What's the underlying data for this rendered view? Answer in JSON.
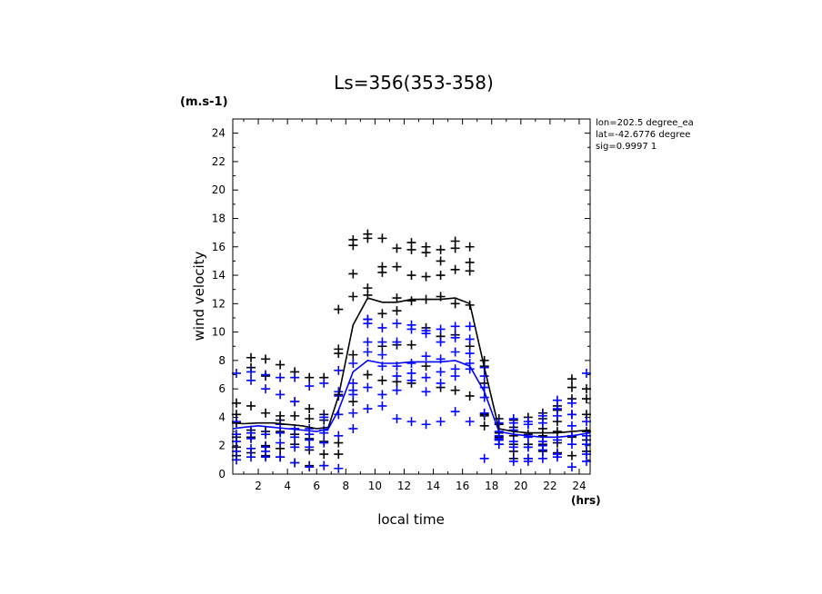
{
  "chart_data": {
    "type": "scatter",
    "title": "Ls=356(353-358)",
    "xlabel": "local time",
    "xunit": "(hrs)",
    "ylabel": "wind velocity",
    "yunit": "(m.s-1)",
    "xlim": [
      0.25,
      24.75
    ],
    "ylim": [
      0,
      25
    ],
    "xticks": [
      2,
      4,
      6,
      8,
      10,
      12,
      14,
      16,
      18,
      20,
      22,
      24
    ],
    "yticks": [
      0,
      2,
      4,
      6,
      8,
      10,
      12,
      14,
      16,
      18,
      20,
      22,
      24
    ],
    "annotations": [
      "lon=202.5 degree_ea",
      "lat=-42.6776 degree",
      "sig=0.9997 1"
    ],
    "colors": {
      "black_series": "#000000",
      "blue_series": "#0000ff"
    },
    "series": [
      {
        "color": "black",
        "marker": "plus",
        "x": [
          0.5,
          0.5,
          0.5,
          0.5,
          0.5,
          0.5,
          1.5,
          1.5,
          1.5,
          1.5,
          1.5,
          1.5,
          2.5,
          2.5,
          2.5,
          2.5,
          2.5,
          2.5,
          3.5,
          3.5,
          3.5,
          3.5,
          3.5,
          3.5,
          4.5,
          4.5,
          4.5,
          4.5,
          4.5,
          4.5,
          5.5,
          5.5,
          5.5,
          5.5,
          5.5,
          5.5,
          6.5,
          6.5,
          6.5,
          6.5,
          6.5,
          6.5,
          7.5,
          7.5,
          7.5,
          7.5,
          7.5,
          7.5,
          8.5,
          8.5,
          8.5,
          8.5,
          8.5,
          8.5,
          9.5,
          9.5,
          9.5,
          9.5,
          9.5,
          9.5,
          10.5,
          10.5,
          10.5,
          10.5,
          10.5,
          10.5,
          11.5,
          11.5,
          11.5,
          11.5,
          11.5,
          11.5,
          12.5,
          12.5,
          12.5,
          12.5,
          12.5,
          12.5,
          13.5,
          13.5,
          13.5,
          13.5,
          13.5,
          13.5,
          14.5,
          14.5,
          14.5,
          14.5,
          14.5,
          14.5,
          15.5,
          15.5,
          15.5,
          15.5,
          15.5,
          15.5,
          16.5,
          16.5,
          16.5,
          16.5,
          16.5,
          16.5,
          17.5,
          17.5,
          17.5,
          17.5,
          17.5,
          17.5,
          18.5,
          18.5,
          18.5,
          18.5,
          18.5,
          18.5,
          19.5,
          19.5,
          19.5,
          19.5,
          19.5,
          19.5,
          20.5,
          20.5,
          20.5,
          20.5,
          20.5,
          20.5,
          21.5,
          21.5,
          21.5,
          21.5,
          21.5,
          21.5,
          22.5,
          22.5,
          22.5,
          22.5,
          22.5,
          22.5,
          23.5,
          23.5,
          23.5,
          23.5,
          23.5,
          23.5,
          24.5,
          24.5,
          24.5,
          24.5,
          24.5,
          24.5
        ],
        "y": [
          5.0,
          4.2,
          3.6,
          2.6,
          1.9,
          1.3,
          8.2,
          7.5,
          4.8,
          3.1,
          2.6,
          1.5,
          8.1,
          6.9,
          4.3,
          3.0,
          2.0,
          1.3,
          7.7,
          4.1,
          3.8,
          3.0,
          1.8,
          1.2,
          7.2,
          5.1,
          4.1,
          2.8,
          2.1,
          0.8,
          6.8,
          4.6,
          3.9,
          2.5,
          1.7,
          0.6,
          6.8,
          4.2,
          3.8,
          2.3,
          1.4,
          0.6,
          11.6,
          8.5,
          8.8,
          5.6,
          2.2,
          1.4,
          16.5,
          16.1,
          14.1,
          12.5,
          8.4,
          5.1,
          16.9,
          16.6,
          13.1,
          12.6,
          10.9,
          7.0,
          16.6,
          14.6,
          14.2,
          11.3,
          9.0,
          6.6,
          15.9,
          14.6,
          12.4,
          11.5,
          9.1,
          6.5,
          16.3,
          15.8,
          14.0,
          12.2,
          9.1,
          6.4,
          16.0,
          15.6,
          13.9,
          12.3,
          10.3,
          7.6,
          15.8,
          15.0,
          14.0,
          12.5,
          9.7,
          6.1,
          16.4,
          15.9,
          14.4,
          12.0,
          9.8,
          5.9,
          16.0,
          14.9,
          14.3,
          11.9,
          9.0,
          5.5,
          8.0,
          7.6,
          6.4,
          4.1,
          4.2,
          3.4,
          3.9,
          3.5,
          2.9,
          2.1,
          2.4,
          2.6,
          3.8,
          3.3,
          2.7,
          2.1,
          1.6,
          1.1,
          4.0,
          3.5,
          2.8,
          2.1,
          1.9,
          1.1,
          4.3,
          3.9,
          3.2,
          2.7,
          2.1,
          1.6,
          4.8,
          4.5,
          3.7,
          3.0,
          2.2,
          1.5,
          6.7,
          6.1,
          5.3,
          4.2,
          2.6,
          1.3,
          6.0,
          5.3,
          4.2,
          3.0,
          2.4,
          1.6
        ]
      },
      {
        "color": "blue",
        "marker": "plus",
        "x": [
          0.5,
          0.5,
          0.5,
          0.5,
          0.5,
          0.5,
          1.5,
          1.5,
          1.5,
          1.5,
          1.5,
          1.5,
          2.5,
          2.5,
          2.5,
          2.5,
          2.5,
          2.5,
          3.5,
          3.5,
          3.5,
          3.5,
          3.5,
          3.5,
          4.5,
          4.5,
          4.5,
          4.5,
          4.5,
          4.5,
          5.5,
          5.5,
          5.5,
          5.5,
          5.5,
          5.5,
          6.5,
          6.5,
          6.5,
          6.5,
          6.5,
          6.5,
          7.5,
          7.5,
          7.5,
          7.5,
          7.5,
          7.5,
          8.5,
          8.5,
          8.5,
          8.5,
          8.5,
          8.5,
          9.5,
          9.5,
          9.5,
          9.5,
          9.5,
          9.5,
          10.5,
          10.5,
          10.5,
          10.5,
          10.5,
          10.5,
          11.5,
          11.5,
          11.5,
          11.5,
          11.5,
          11.5,
          12.5,
          12.5,
          12.5,
          12.5,
          12.5,
          12.5,
          13.5,
          13.5,
          13.5,
          13.5,
          13.5,
          13.5,
          14.5,
          14.5,
          14.5,
          14.5,
          14.5,
          14.5,
          15.5,
          15.5,
          15.5,
          15.5,
          15.5,
          15.5,
          16.5,
          16.5,
          16.5,
          16.5,
          16.5,
          16.5,
          17.5,
          17.5,
          17.5,
          17.5,
          17.5,
          17.5,
          18.5,
          18.5,
          18.5,
          18.5,
          18.5,
          18.5,
          19.5,
          19.5,
          19.5,
          19.5,
          19.5,
          19.5,
          20.5,
          20.5,
          20.5,
          20.5,
          20.5,
          20.5,
          21.5,
          21.5,
          21.5,
          21.5,
          21.5,
          21.5,
          22.5,
          22.5,
          22.5,
          22.5,
          22.5,
          22.5,
          23.5,
          23.5,
          23.5,
          23.5,
          23.5,
          23.5,
          24.5,
          24.5,
          24.5,
          24.5,
          24.5,
          24.5
        ],
        "y": [
          7.1,
          3.7,
          2.8,
          2.3,
          1.6,
          1.0,
          7.2,
          6.6,
          2.9,
          2.5,
          1.8,
          1.2,
          7.0,
          6.0,
          2.8,
          1.9,
          1.6,
          1.2,
          6.8,
          5.6,
          3.5,
          2.9,
          2.2,
          1.2,
          6.8,
          5.1,
          3.2,
          2.6,
          1.9,
          0.8,
          6.2,
          3.2,
          2.8,
          2.4,
          1.9,
          0.5,
          6.4,
          4.0,
          3.1,
          2.9,
          2.2,
          0.6,
          7.3,
          5.8,
          5.5,
          4.2,
          2.7,
          0.4,
          7.8,
          6.4,
          5.9,
          5.6,
          4.3,
          3.2,
          10.9,
          10.6,
          9.3,
          8.6,
          6.1,
          4.6,
          10.3,
          9.3,
          8.4,
          7.6,
          5.6,
          4.8,
          10.6,
          9.3,
          7.6,
          6.9,
          5.9,
          3.9,
          10.5,
          10.2,
          7.8,
          7.1,
          6.6,
          3.7,
          10.1,
          9.9,
          8.3,
          6.8,
          5.8,
          3.5,
          10.2,
          9.3,
          8.1,
          7.2,
          6.4,
          3.7,
          10.4,
          9.6,
          8.6,
          7.4,
          6.9,
          4.4,
          10.4,
          9.5,
          8.5,
          7.8,
          7.4,
          3.7,
          7.5,
          6.9,
          6.1,
          5.4,
          4.3,
          1.1,
          3.6,
          3.0,
          2.7,
          2.5,
          2.4,
          2.1,
          3.9,
          3.6,
          3.1,
          2.3,
          1.9,
          0.9,
          3.7,
          3.5,
          2.6,
          1.9,
          1.1,
          0.9,
          4.1,
          3.6,
          2.3,
          2.0,
          1.7,
          1.1,
          5.2,
          4.6,
          4.1,
          2.4,
          1.4,
          1.2,
          5.0,
          4.2,
          3.4,
          2.7,
          2.1,
          0.5,
          7.1,
          3.7,
          2.7,
          2.1,
          1.4,
          0.9
        ]
      }
    ],
    "lines": [
      {
        "color": "black",
        "x": [
          0.25,
          1,
          2,
          3,
          4,
          5,
          6,
          6.8,
          7.5,
          8.5,
          9.5,
          10.5,
          11.5,
          12.5,
          13.5,
          14.5,
          15.5,
          16.5,
          17.5,
          18.5,
          19.5,
          20.5,
          21.5,
          22.5,
          23.5,
          24.75
        ],
        "y": [
          3.6,
          3.55,
          3.6,
          3.6,
          3.5,
          3.4,
          3.2,
          3.3,
          5.5,
          10.5,
          12.4,
          12.1,
          12.1,
          12.3,
          12.3,
          12.3,
          12.4,
          12.0,
          7.5,
          3.2,
          3.0,
          2.9,
          2.9,
          2.9,
          3.0,
          3.1
        ]
      },
      {
        "color": "blue",
        "x": [
          0.25,
          1,
          2,
          3,
          4,
          5,
          6,
          6.8,
          7.5,
          8.5,
          9.5,
          10.5,
          11.5,
          12.5,
          13.5,
          14.5,
          15.5,
          16.5,
          17.5,
          18.5,
          19.5,
          20.5,
          21.5,
          22.5,
          23.5,
          24.75
        ],
        "y": [
          3.2,
          3.3,
          3.4,
          3.3,
          3.2,
          3.1,
          3.0,
          3.2,
          4.5,
          7.2,
          8.0,
          7.8,
          7.8,
          7.9,
          7.9,
          7.9,
          8.0,
          7.6,
          5.8,
          3.0,
          2.8,
          2.7,
          2.6,
          2.6,
          2.7,
          2.9
        ]
      }
    ]
  }
}
